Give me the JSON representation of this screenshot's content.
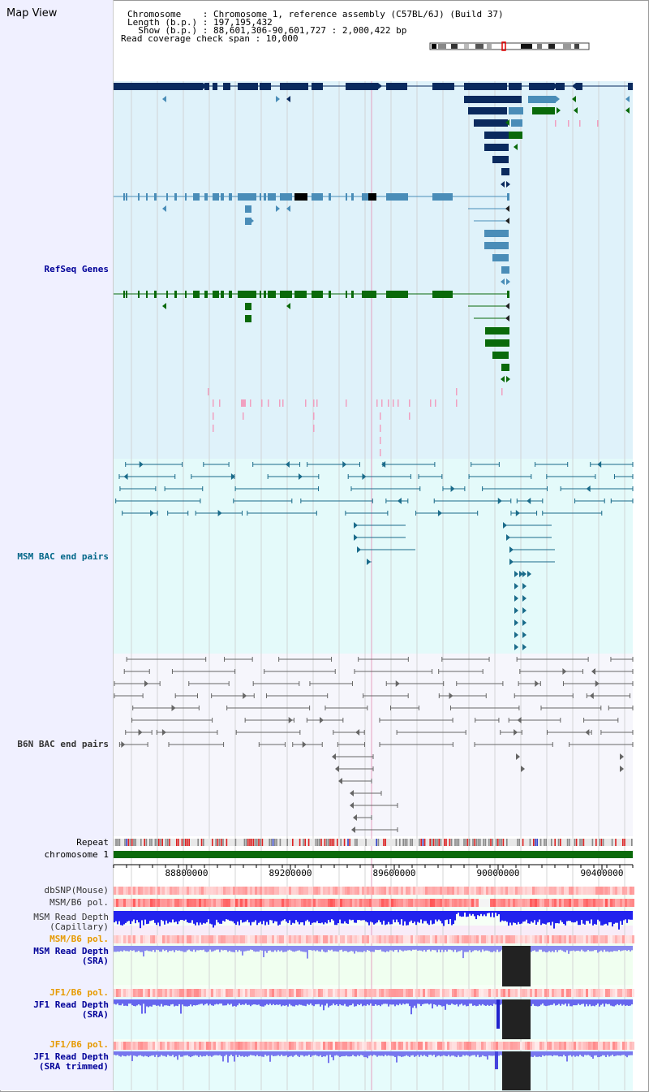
{
  "header": {
    "title": "Map View",
    "chromosome_line": "Chromosome    : Chromosome 1, reference assembly (C57BL/6J) (Build 37)",
    "length_line": "Length (b.p.) : 197,195,432",
    "show_line": "  Show (b.p.) : 88,601,306-90,601,727 : 2,000,422 bp",
    "coverage_line": "Read coverage check span : 10,000"
  },
  "tracks": {
    "refseq": "RefSeq Genes",
    "msm_bac": "MSM BAC end pairs",
    "b6n_bac": "B6N BAC end pairs",
    "repeat": "Repeat",
    "chromosome": "chromosome 1"
  },
  "axis": {
    "ticks": [
      "88800000",
      "89200000",
      "89600000",
      "90000000",
      "90400000"
    ]
  },
  "lower_tracks": {
    "dbsnp": "dbSNP(Mouse)",
    "msm_b6_pol": "MSM/B6 pol.",
    "msm_depth_cap": "MSM Read Depth\n(Capillary)",
    "msm_b6_pol2": "MSM/B6 pol.",
    "msm_depth_sra": "MSM Read Depth\n(SRA)",
    "jf1_b6_pol": "JF1/B6 pol.",
    "jf1_depth_sra": "JF1 Read Depth\n(SRA)",
    "jf1_b6_pol2": "JF1/B6 pol.",
    "jf1_depth_trim": "JF1 Read Depth\n(SRA trimmed)"
  },
  "colors": {
    "navy": "#0a2a5e",
    "steel": "#4a8db8",
    "green": "#0a6a0a",
    "teal": "#1a6b8a",
    "gray": "#666666",
    "pink": "#f0a0c0",
    "refseq_label": "#000099",
    "msm_label": "#006688",
    "b6n_label": "#333333",
    "orange_label": "#e69a00"
  }
}
